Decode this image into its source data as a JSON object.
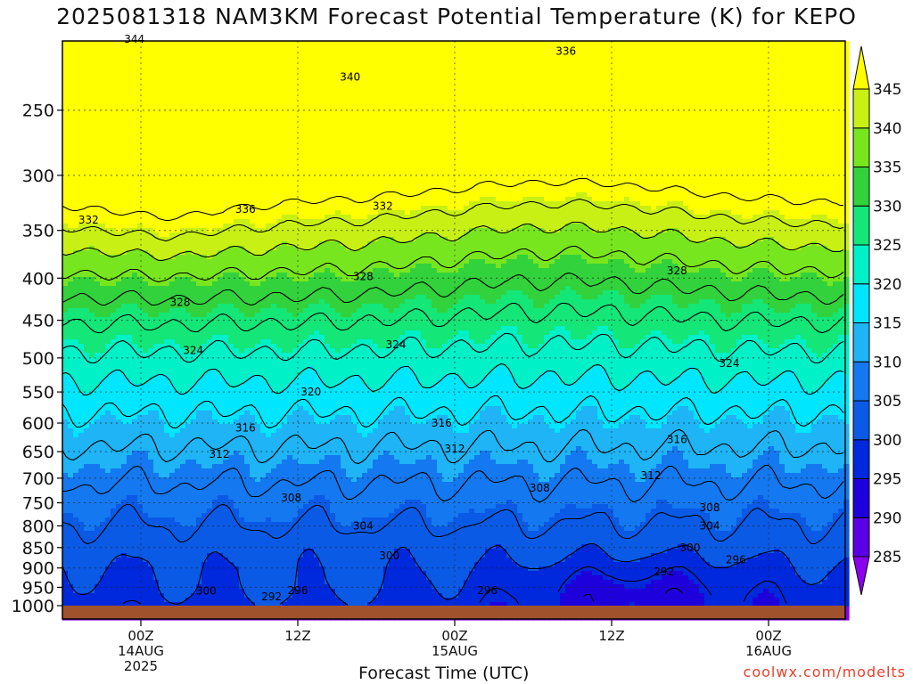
{
  "title": "2025081318 NAM3KM Forecast Potential Temperature (K) for KEPO",
  "credit": "coolwx.com/modelts",
  "chart_data": {
    "type": "heatmap",
    "title": "2025081318 NAM3KM Forecast Potential Temperature (K) for KEPO",
    "xlabel": "Forecast Time (UTC)",
    "ylabel": "",
    "y_ticks": [
      250,
      300,
      350,
      400,
      450,
      500,
      550,
      600,
      650,
      700,
      750,
      800,
      850,
      900,
      950,
      1000
    ],
    "ylim": [
      1000,
      200
    ],
    "x_ticks": [
      {
        "hour": 6,
        "lines": [
          "00Z",
          "14AUG",
          "2025"
        ]
      },
      {
        "hour": 18,
        "lines": [
          "12Z"
        ]
      },
      {
        "hour": 30,
        "lines": [
          "00Z",
          "15AUG"
        ]
      },
      {
        "hour": 42,
        "lines": [
          "12Z"
        ]
      },
      {
        "hour": 54,
        "lines": [
          "00Z",
          "16AUG"
        ]
      }
    ],
    "xlim": [
      0,
      60
    ],
    "colorbar": {
      "levels": [
        285,
        290,
        295,
        300,
        305,
        310,
        315,
        320,
        325,
        330,
        335,
        340,
        345
      ],
      "colors": [
        "#8c00f0",
        "#5a00e6",
        "#1e00dc",
        "#0028dc",
        "#0a5ae6",
        "#1478f0",
        "#1eb4f5",
        "#00e6ff",
        "#00f0c8",
        "#14e678",
        "#32d23c",
        "#78e61e",
        "#c8f014",
        "#ffff00"
      ]
    },
    "contour_labels": [
      {
        "value": "344",
        "hour": 5.5,
        "p": 205
      },
      {
        "value": "340",
        "hour": 22,
        "p": 228
      },
      {
        "value": "336",
        "hour": 38.5,
        "p": 212
      },
      {
        "value": "336",
        "hour": 14,
        "p": 330
      },
      {
        "value": "332",
        "hour": 2,
        "p": 340
      },
      {
        "value": "332",
        "hour": 24.5,
        "p": 327
      },
      {
        "value": "328",
        "hour": 9,
        "p": 428
      },
      {
        "value": "328",
        "hour": 23,
        "p": 398
      },
      {
        "value": "328",
        "hour": 47,
        "p": 392
      },
      {
        "value": "324",
        "hour": 10,
        "p": 490
      },
      {
        "value": "324",
        "hour": 25.5,
        "p": 482
      },
      {
        "value": "324",
        "hour": 51,
        "p": 508
      },
      {
        "value": "320",
        "hour": 19,
        "p": 550
      },
      {
        "value": "316",
        "hour": 14,
        "p": 608
      },
      {
        "value": "316",
        "hour": 29,
        "p": 600
      },
      {
        "value": "316",
        "hour": 47,
        "p": 628
      },
      {
        "value": "312",
        "hour": 12,
        "p": 655
      },
      {
        "value": "312",
        "hour": 30,
        "p": 645
      },
      {
        "value": "312",
        "hour": 45,
        "p": 695
      },
      {
        "value": "308",
        "hour": 17.5,
        "p": 740
      },
      {
        "value": "308",
        "hour": 36.5,
        "p": 720
      },
      {
        "value": "308",
        "hour": 49.5,
        "p": 760
      },
      {
        "value": "304",
        "hour": 23,
        "p": 800
      },
      {
        "value": "304",
        "hour": 49.5,
        "p": 800
      },
      {
        "value": "300",
        "hour": 25,
        "p": 870
      },
      {
        "value": "300",
        "hour": 48,
        "p": 850
      },
      {
        "value": "300",
        "hour": 11,
        "p": 960
      },
      {
        "value": "296",
        "hour": 18,
        "p": 958
      },
      {
        "value": "296",
        "hour": 32.5,
        "p": 958
      },
      {
        "value": "296",
        "hour": 51.5,
        "p": 880
      },
      {
        "value": "292",
        "hour": 16,
        "p": 975
      },
      {
        "value": "292",
        "hour": 46,
        "p": 910
      }
    ]
  }
}
